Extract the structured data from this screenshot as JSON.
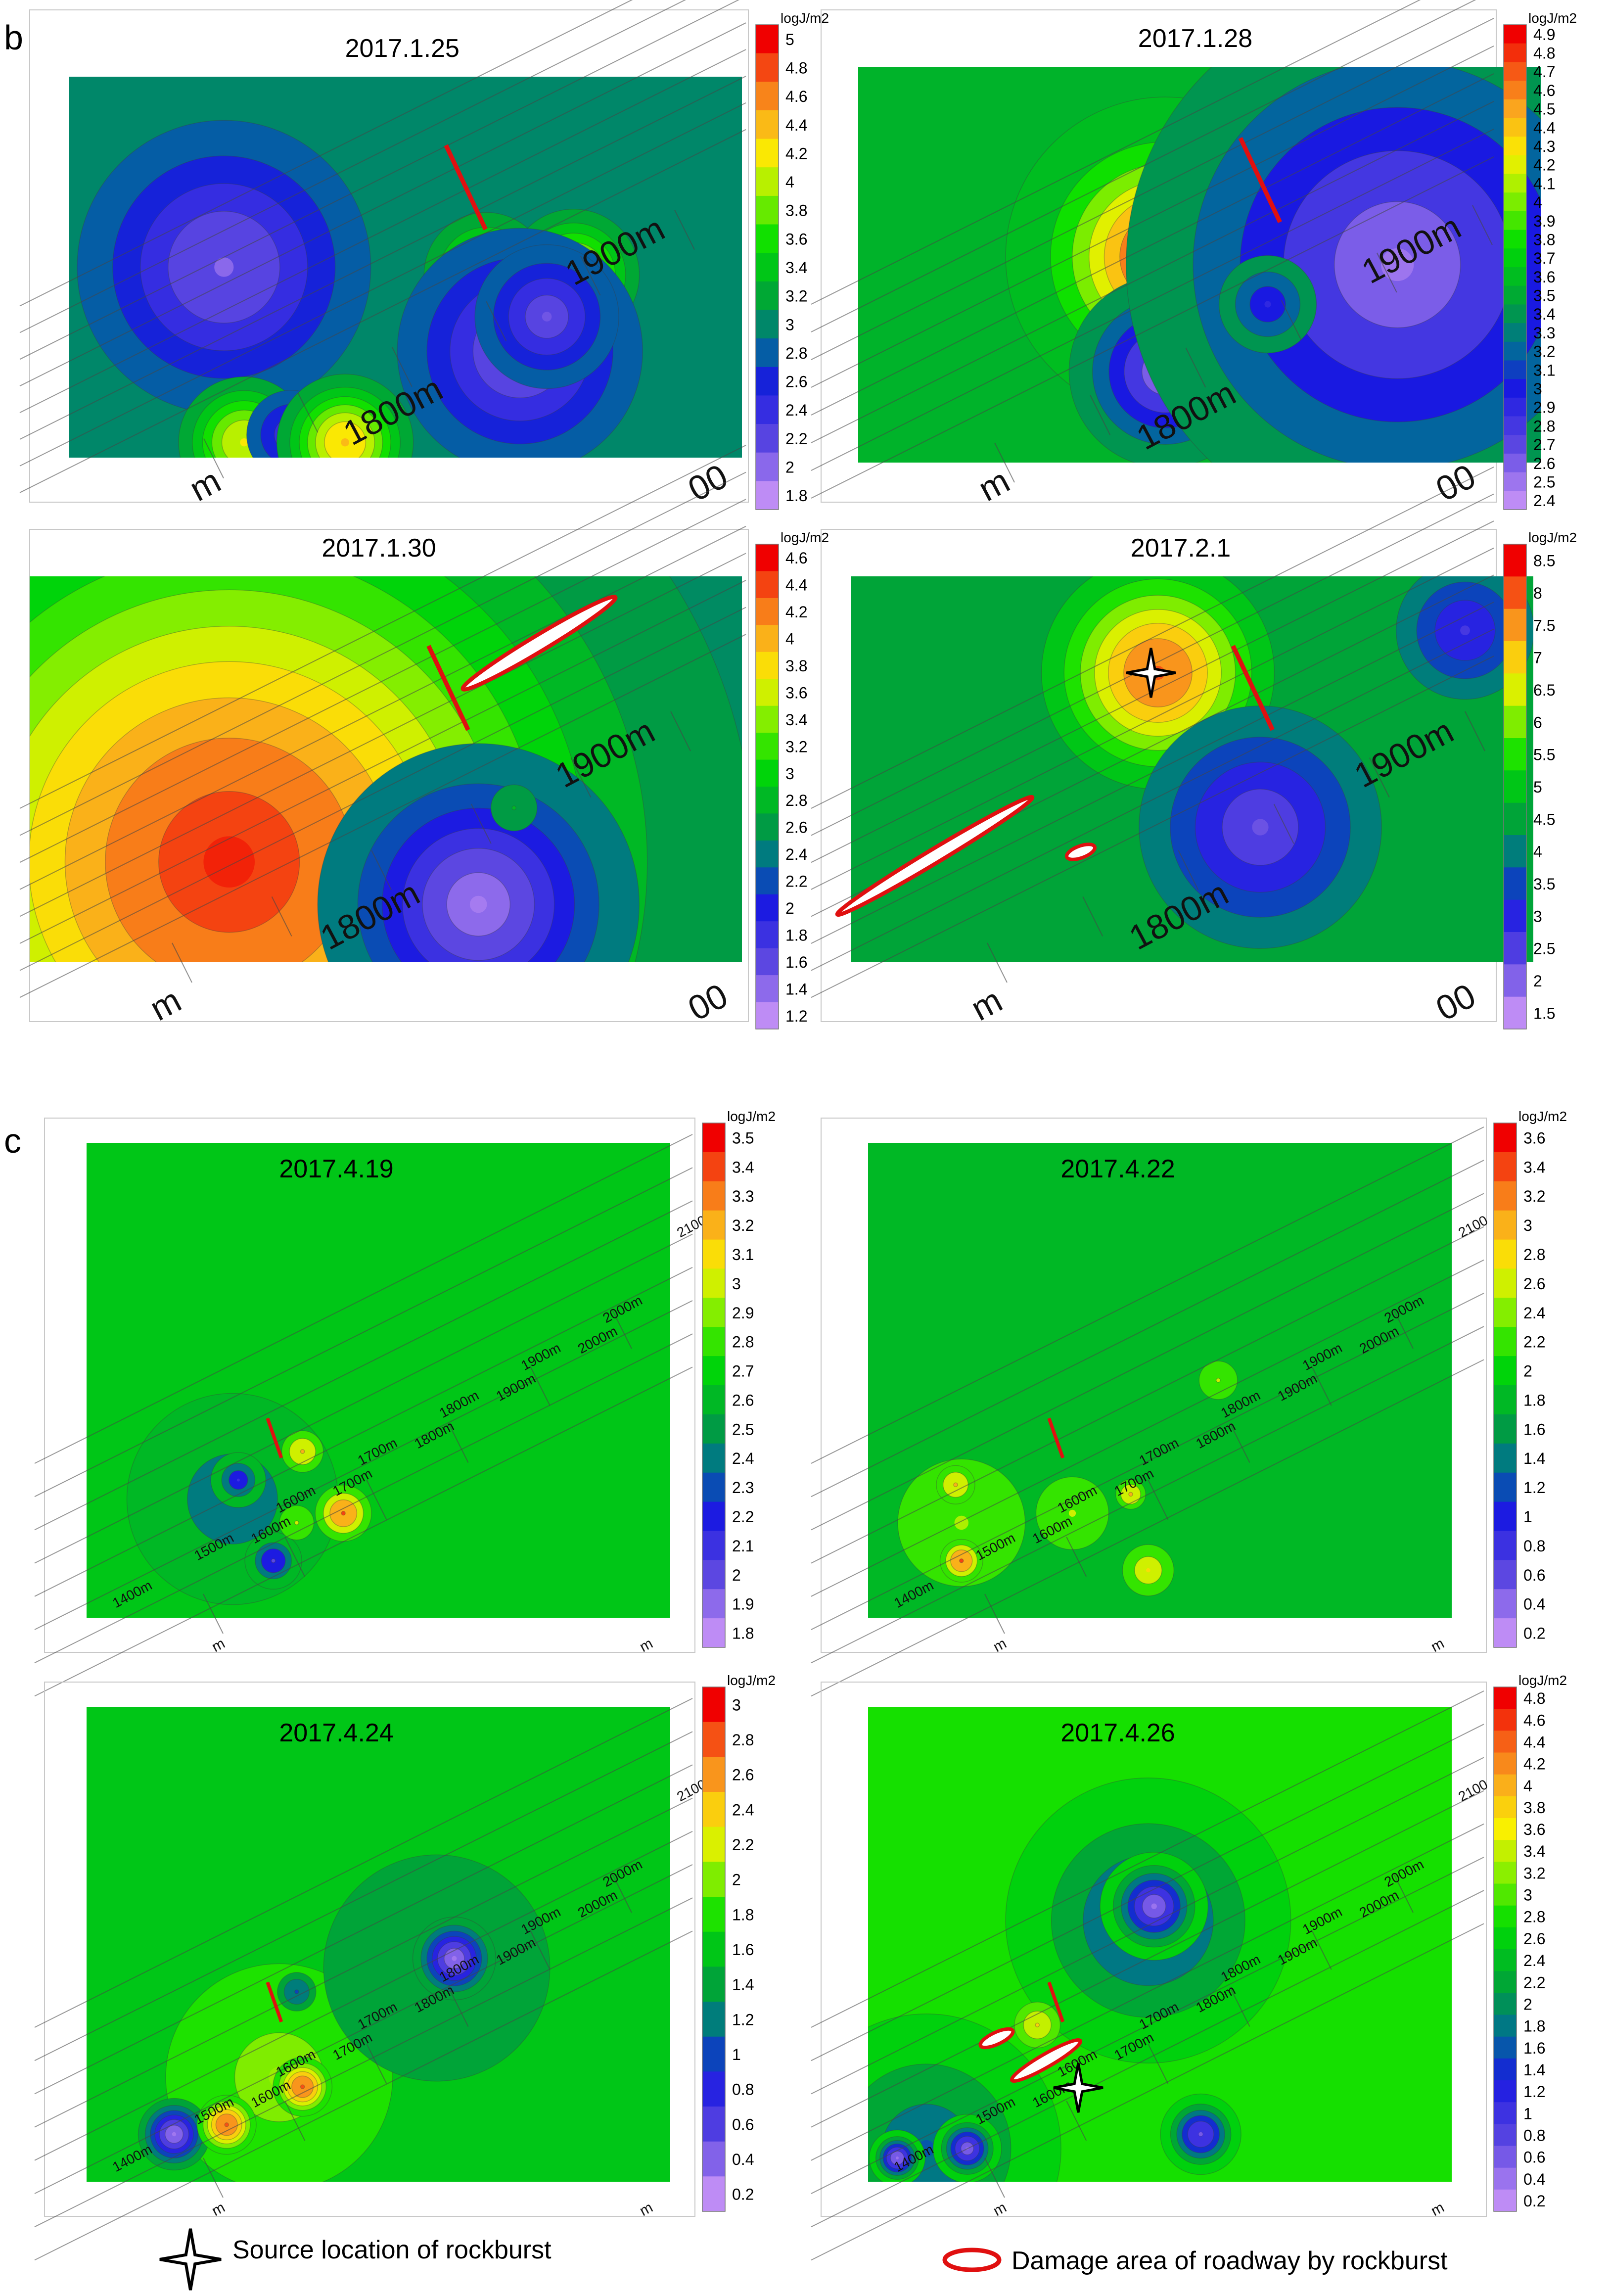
{
  "figure": {
    "section_b_label": "b",
    "section_c_label": "c",
    "legend": {
      "source_label": "Source location of rockburst",
      "damage_label": "Damage area of roadway by rockburst"
    }
  },
  "chart_data": [
    {
      "type": "heatmap",
      "section": "b",
      "title": "2017.1.25",
      "colorbar_unit": "logJ/m2",
      "colorbar_ticks": [
        "5",
        "4.8",
        "4.6",
        "4.4",
        "4.2",
        "4",
        "3.8",
        "3.6",
        "3.4",
        "3.2",
        "3",
        "2.8",
        "2.6",
        "2.4",
        "2.2",
        "2",
        "1.8"
      ],
      "colorbar_range": [
        1.8,
        5
      ],
      "background_level": 3.0,
      "contour_levels": [
        1.8,
        2.0,
        2.2,
        2.4,
        2.6,
        2.8,
        3.0,
        3.2,
        3.4,
        3.6,
        3.8,
        4.0,
        4.2,
        4.4,
        4.6,
        4.8,
        5.0
      ],
      "distance_labels": [
        "1800m",
        "1900m"
      ],
      "edge_labels": [
        "m",
        "00"
      ],
      "hotspots": [
        {
          "x": 0.23,
          "y": 0.5,
          "peak": 2.0,
          "sigma": 0.12
        },
        {
          "x": 0.26,
          "y": 0.96,
          "peak": 4.2,
          "sigma": 0.05
        },
        {
          "x": 0.33,
          "y": 0.94,
          "peak": 2.3,
          "sigma": 0.04
        },
        {
          "x": 0.41,
          "y": 0.96,
          "peak": 4.4,
          "sigma": 0.05
        },
        {
          "x": 0.62,
          "y": 0.52,
          "peak": 4.0,
          "sigma": 0.05
        },
        {
          "x": 0.75,
          "y": 0.52,
          "peak": 4.2,
          "sigma": 0.05
        },
        {
          "x": 0.67,
          "y": 0.72,
          "peak": 2.0,
          "sigma": 0.1
        },
        {
          "x": 0.71,
          "y": 0.63,
          "peak": 2.1,
          "sigma": 0.06
        }
      ],
      "damage_areas": [],
      "source_location": null
    },
    {
      "type": "heatmap",
      "section": "b",
      "title": "2017.1.28",
      "colorbar_unit": "logJ/m2",
      "colorbar_ticks": [
        "4.9",
        "4.8",
        "4.7",
        "4.6",
        "4.5",
        "4.4",
        "4.3",
        "4.2",
        "4.1",
        "4",
        "3.9",
        "3.8",
        "3.7",
        "3.6",
        "3.5",
        "3.4",
        "3.3",
        "3.2",
        "3.1",
        "3",
        "2.9",
        "2.8",
        "2.7",
        "2.6",
        "2.5",
        "2.4"
      ],
      "colorbar_range": [
        2.4,
        4.9
      ],
      "background_level": 3.55,
      "contour_levels": [
        2.4,
        2.6,
        2.8,
        3.0,
        3.2,
        3.4,
        3.6,
        3.8,
        4.0,
        4.2,
        4.4,
        4.6,
        4.8
      ],
      "distance_labels": [
        "1800m",
        "1900m"
      ],
      "edge_labels": [
        "m",
        "00"
      ],
      "hotspots": [
        {
          "x": 0.45,
          "y": 0.48,
          "peak": 4.9,
          "sigma": 0.09
        },
        {
          "x": 0.45,
          "y": 0.77,
          "peak": 2.5,
          "sigma": 0.07
        },
        {
          "x": 0.79,
          "y": 0.5,
          "peak": 2.5,
          "sigma": 0.2
        },
        {
          "x": 0.6,
          "y": 0.6,
          "peak": 2.9,
          "sigma": 0.04
        }
      ],
      "damage_areas": [],
      "source_location": null
    },
    {
      "type": "heatmap",
      "section": "b",
      "title": "2017.1.30",
      "colorbar_unit": "logJ/m2",
      "colorbar_ticks": [
        "4.6",
        "4.4",
        "4.2",
        "4",
        "3.8",
        "3.6",
        "3.4",
        "3.2",
        "3",
        "2.8",
        "2.6",
        "2.4",
        "2.2",
        "2",
        "1.8",
        "1.6",
        "1.4",
        "1.2"
      ],
      "colorbar_range": [
        1.2,
        4.6
      ],
      "background_level": 2.5,
      "contour_levels": [
        1.2,
        1.4,
        1.6,
        1.8,
        2.0,
        2.2,
        2.4,
        2.6,
        2.8,
        3.0,
        3.2,
        3.4,
        3.6,
        3.8,
        4.0,
        4.2,
        4.4,
        4.6
      ],
      "distance_labels": [
        "1800m",
        "1900m"
      ],
      "edge_labels": [
        "m",
        "00"
      ],
      "hotspots": [
        {
          "x": 0.28,
          "y": 0.74,
          "peak": 4.5,
          "sigma": 0.3
        },
        {
          "x": 0.63,
          "y": 0.85,
          "peak": 1.3,
          "sigma": 0.1
        },
        {
          "x": 0.68,
          "y": 0.6,
          "peak": 2.8,
          "sigma": 0.02
        }
      ],
      "damage_areas": [],
      "source_location": null
    },
    {
      "type": "heatmap",
      "section": "b",
      "title": "2017.2.1",
      "colorbar_unit": "logJ/m2",
      "colorbar_ticks": [
        "8.5",
        "8",
        "7.5",
        "7",
        "6.5",
        "6",
        "5.5",
        "5",
        "4.5",
        "4",
        "3.5",
        "3",
        "2.5",
        "2",
        "1.5"
      ],
      "colorbar_range": [
        1.5,
        8.5
      ],
      "background_level": 4.5,
      "contour_levels": [
        1.5,
        2.0,
        2.5,
        3.0,
        3.5,
        4.0,
        4.5,
        5.0,
        5.5,
        6.0,
        6.5,
        7.0,
        7.5,
        8.0,
        8.5
      ],
      "distance_labels": [
        "1800m",
        "1900m"
      ],
      "edge_labels": [
        "m",
        "00"
      ],
      "hotspots": [
        {
          "x": 0.45,
          "y": 0.25,
          "peak": 8.0,
          "sigma": 0.085
        },
        {
          "x": 0.6,
          "y": 0.65,
          "peak": 2.2,
          "sigma": 0.1
        },
        {
          "x": 0.9,
          "y": 0.14,
          "peak": 2.6,
          "sigma": 0.06
        }
      ],
      "damage_areas": [
        {
          "note": "long elongated zone along roadway"
        },
        {
          "note": "small oval below"
        }
      ],
      "source_location": {
        "marker": "star-icon"
      }
    },
    {
      "type": "heatmap",
      "section": "c",
      "title": "2017.4.19",
      "colorbar_unit": "logJ/m2",
      "colorbar_ticks": [
        "3.5",
        "3.4",
        "3.3",
        "3.2",
        "3.1",
        "3",
        "2.9",
        "2.8",
        "2.7",
        "2.6",
        "2.5",
        "2.4",
        "2.3",
        "2.2",
        "2.1",
        "2",
        "1.9",
        "1.8"
      ],
      "colorbar_range": [
        1.8,
        3.5
      ],
      "background_level": 2.65,
      "contour_levels": [
        1.8,
        2.0,
        2.2,
        2.4,
        2.6,
        2.8,
        3.0,
        3.2,
        3.4
      ],
      "distance_labels": [
        "1400m",
        "1500m",
        "1600m",
        "1700m",
        "1800m",
        "1900m",
        "2000m",
        "1600m",
        "1700m",
        "1800m",
        "1900m",
        "2000m",
        "2100"
      ],
      "edge_labels": [
        "m",
        "m"
      ],
      "hotspots": [
        {
          "x": 0.25,
          "y": 0.75,
          "peak": 2.3,
          "sigma": 0.09
        },
        {
          "x": 0.26,
          "y": 0.71,
          "peak": 2.1,
          "sigma": 0.02
        },
        {
          "x": 0.32,
          "y": 0.88,
          "peak": 2.0,
          "sigma": 0.02
        },
        {
          "x": 0.37,
          "y": 0.65,
          "peak": 3.2,
          "sigma": 0.02
        },
        {
          "x": 0.44,
          "y": 0.78,
          "peak": 3.4,
          "sigma": 0.025
        },
        {
          "x": 0.36,
          "y": 0.8,
          "peak": 3.0,
          "sigma": 0.02
        }
      ],
      "damage_areas": [],
      "source_location": null
    },
    {
      "type": "heatmap",
      "section": "c",
      "title": "2017.4.22",
      "colorbar_unit": "logJ/m2",
      "colorbar_ticks": [
        "3.6",
        "3.4",
        "3.2",
        "3",
        "2.8",
        "2.6",
        "2.4",
        "2.2",
        "2",
        "1.8",
        "1.6",
        "1.4",
        "1.2",
        "1",
        "0.8",
        "0.6",
        "0.4",
        "0.2"
      ],
      "colorbar_range": [
        0.2,
        3.6
      ],
      "background_level": 1.8,
      "contour_levels": [
        0.2,
        0.6,
        1.0,
        1.4,
        1.8,
        2.2,
        2.6,
        3.0,
        3.4
      ],
      "distance_labels": [
        "1400m",
        "1500m",
        "1600m",
        "1700m",
        "1800m",
        "1900m",
        "2000m",
        "1600m",
        "1700m",
        "1800m",
        "1900m",
        "2000m",
        "2100"
      ],
      "edge_labels": [
        "m",
        "m"
      ],
      "hotspots": [
        {
          "x": 0.16,
          "y": 0.8,
          "peak": 2.5,
          "sigma": 0.1
        },
        {
          "x": 0.16,
          "y": 0.88,
          "peak": 3.4,
          "sigma": 0.02
        },
        {
          "x": 0.15,
          "y": 0.72,
          "peak": 3.0,
          "sigma": 0.02
        },
        {
          "x": 0.35,
          "y": 0.78,
          "peak": 2.6,
          "sigma": 0.05
        },
        {
          "x": 0.48,
          "y": 0.9,
          "peak": 2.8,
          "sigma": 0.03
        },
        {
          "x": 0.6,
          "y": 0.5,
          "peak": 2.6,
          "sigma": 0.025
        },
        {
          "x": 0.45,
          "y": 0.74,
          "peak": 3.0,
          "sigma": 0.015
        }
      ],
      "damage_areas": [],
      "source_location": null
    },
    {
      "type": "heatmap",
      "section": "c",
      "title": "2017.4.24",
      "colorbar_unit": "logJ/m2",
      "colorbar_ticks": [
        "3",
        "2.8",
        "2.6",
        "2.4",
        "2.2",
        "2",
        "1.8",
        "1.6",
        "1.4",
        "1.2",
        "1",
        "0.8",
        "0.6",
        "0.4",
        "0.2"
      ],
      "colorbar_range": [
        0.2,
        3.0
      ],
      "background_level": 1.6,
      "contour_levels": [
        0.2,
        0.4,
        0.6,
        0.8,
        1.0,
        1.2,
        1.4,
        1.6,
        1.8,
        2.0,
        2.2,
        2.4,
        2.6,
        2.8
      ],
      "distance_labels": [
        "1400m",
        "1500m",
        "1600m",
        "1700m",
        "1800m",
        "1900m",
        "2000m",
        "1600m",
        "1700m",
        "1800m",
        "1900m",
        "2000m",
        "2100"
      ],
      "edge_labels": [
        "m",
        "m"
      ],
      "hotspots": [
        {
          "x": 0.33,
          "y": 0.78,
          "peak": 2.05,
          "sigma": 0.15
        },
        {
          "x": 0.6,
          "y": 0.55,
          "peak": 1.25,
          "sigma": 0.18
        },
        {
          "x": 0.63,
          "y": 0.53,
          "peak": 0.3,
          "sigma": 0.035
        },
        {
          "x": 0.15,
          "y": 0.9,
          "peak": 0.3,
          "sigma": 0.03
        },
        {
          "x": 0.24,
          "y": 0.88,
          "peak": 2.8,
          "sigma": 0.025
        },
        {
          "x": 0.37,
          "y": 0.8,
          "peak": 2.8,
          "sigma": 0.025
        },
        {
          "x": 0.36,
          "y": 0.6,
          "peak": 1.0,
          "sigma": 0.02
        }
      ],
      "damage_areas": [],
      "source_location": null
    },
    {
      "type": "heatmap",
      "section": "c",
      "title": "2017.4.26",
      "colorbar_unit": "logJ/m2",
      "colorbar_ticks": [
        "4.8",
        "4.6",
        "4.4",
        "4.2",
        "4",
        "3.8",
        "3.6",
        "3.4",
        "3.2",
        "3",
        "2.8",
        "2.6",
        "2.4",
        "2.2",
        "2",
        "1.8",
        "1.6",
        "1.4",
        "1.2",
        "1",
        "0.8",
        "0.6",
        "0.4",
        "0.2"
      ],
      "colorbar_range": [
        0.2,
        4.8
      ],
      "background_level": 2.8,
      "contour_levels": [
        0.2,
        0.6,
        1.0,
        1.4,
        1.8,
        2.2,
        2.6,
        3.0,
        3.4,
        3.8,
        4.2,
        4.6
      ],
      "distance_labels": [
        "1400m",
        "1500m",
        "1600m",
        "1700m",
        "1800m",
        "1900m",
        "2000m",
        "1600m",
        "1700m",
        "1800m",
        "1900m",
        "2000m",
        "2100"
      ],
      "edge_labels": [
        "m",
        "m"
      ],
      "hotspots": [
        {
          "x": 0.48,
          "y": 0.45,
          "peak": 1.3,
          "sigma": 0.12
        },
        {
          "x": 0.49,
          "y": 0.42,
          "peak": 0.4,
          "sigma": 0.04
        },
        {
          "x": 0.1,
          "y": 0.93,
          "peak": 1.6,
          "sigma": 0.12
        },
        {
          "x": 0.05,
          "y": 0.95,
          "peak": 0.4,
          "sigma": 0.02
        },
        {
          "x": 0.17,
          "y": 0.93,
          "peak": 0.5,
          "sigma": 0.025
        },
        {
          "x": 0.57,
          "y": 0.9,
          "peak": 0.6,
          "sigma": 0.03
        },
        {
          "x": 0.29,
          "y": 0.67,
          "peak": 3.8,
          "sigma": 0.02
        }
      ],
      "damage_areas": [
        {
          "note": "two ovals along roadway"
        }
      ],
      "source_location": {
        "marker": "star-icon"
      }
    }
  ]
}
